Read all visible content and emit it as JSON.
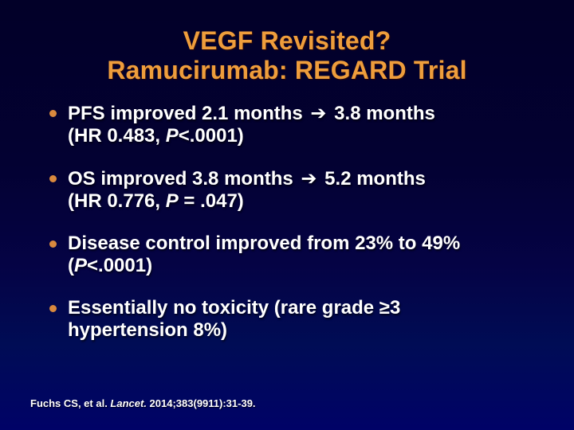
{
  "colors": {
    "bg_top": "#020028",
    "bg_bottom": "#000267",
    "title": "#ee9d3c",
    "bullet_dot": "#d9893e",
    "body_text": "#ffffff"
  },
  "title": {
    "line1": "VEGF Revisited?",
    "line2": "Ramucirumab: REGARD Trial"
  },
  "bullets": [
    {
      "l1a": "PFS improved 2.1 months ",
      "arrow": "➔",
      "l1b": " 3.8 months",
      "l2a": "(HR 0.483, ",
      "l2i": "P",
      "l2b": "<.0001)"
    },
    {
      "l1a": "OS improved 3.8 months ",
      "arrow": "➔",
      "l1b": " 5.2 months",
      "l2a": "(HR 0.776, ",
      "l2i": "P",
      "l2b": " = .047)"
    },
    {
      "l1a": "Disease control improved from 23% to 49%",
      "arrow": "",
      "l1b": "",
      "l2a": "(",
      "l2i": "P",
      "l2b": "<.0001)"
    },
    {
      "l1a": "Essentially no toxicity (rare grade ≥3",
      "arrow": "",
      "l1b": "",
      "l2a": "hypertension 8%)",
      "l2i": "",
      "l2b": ""
    }
  ],
  "citation": {
    "pre": "Fuchs CS, et al. ",
    "journal_italic": "Lancet.",
    "post": " 2014;383(9911):31-39."
  }
}
